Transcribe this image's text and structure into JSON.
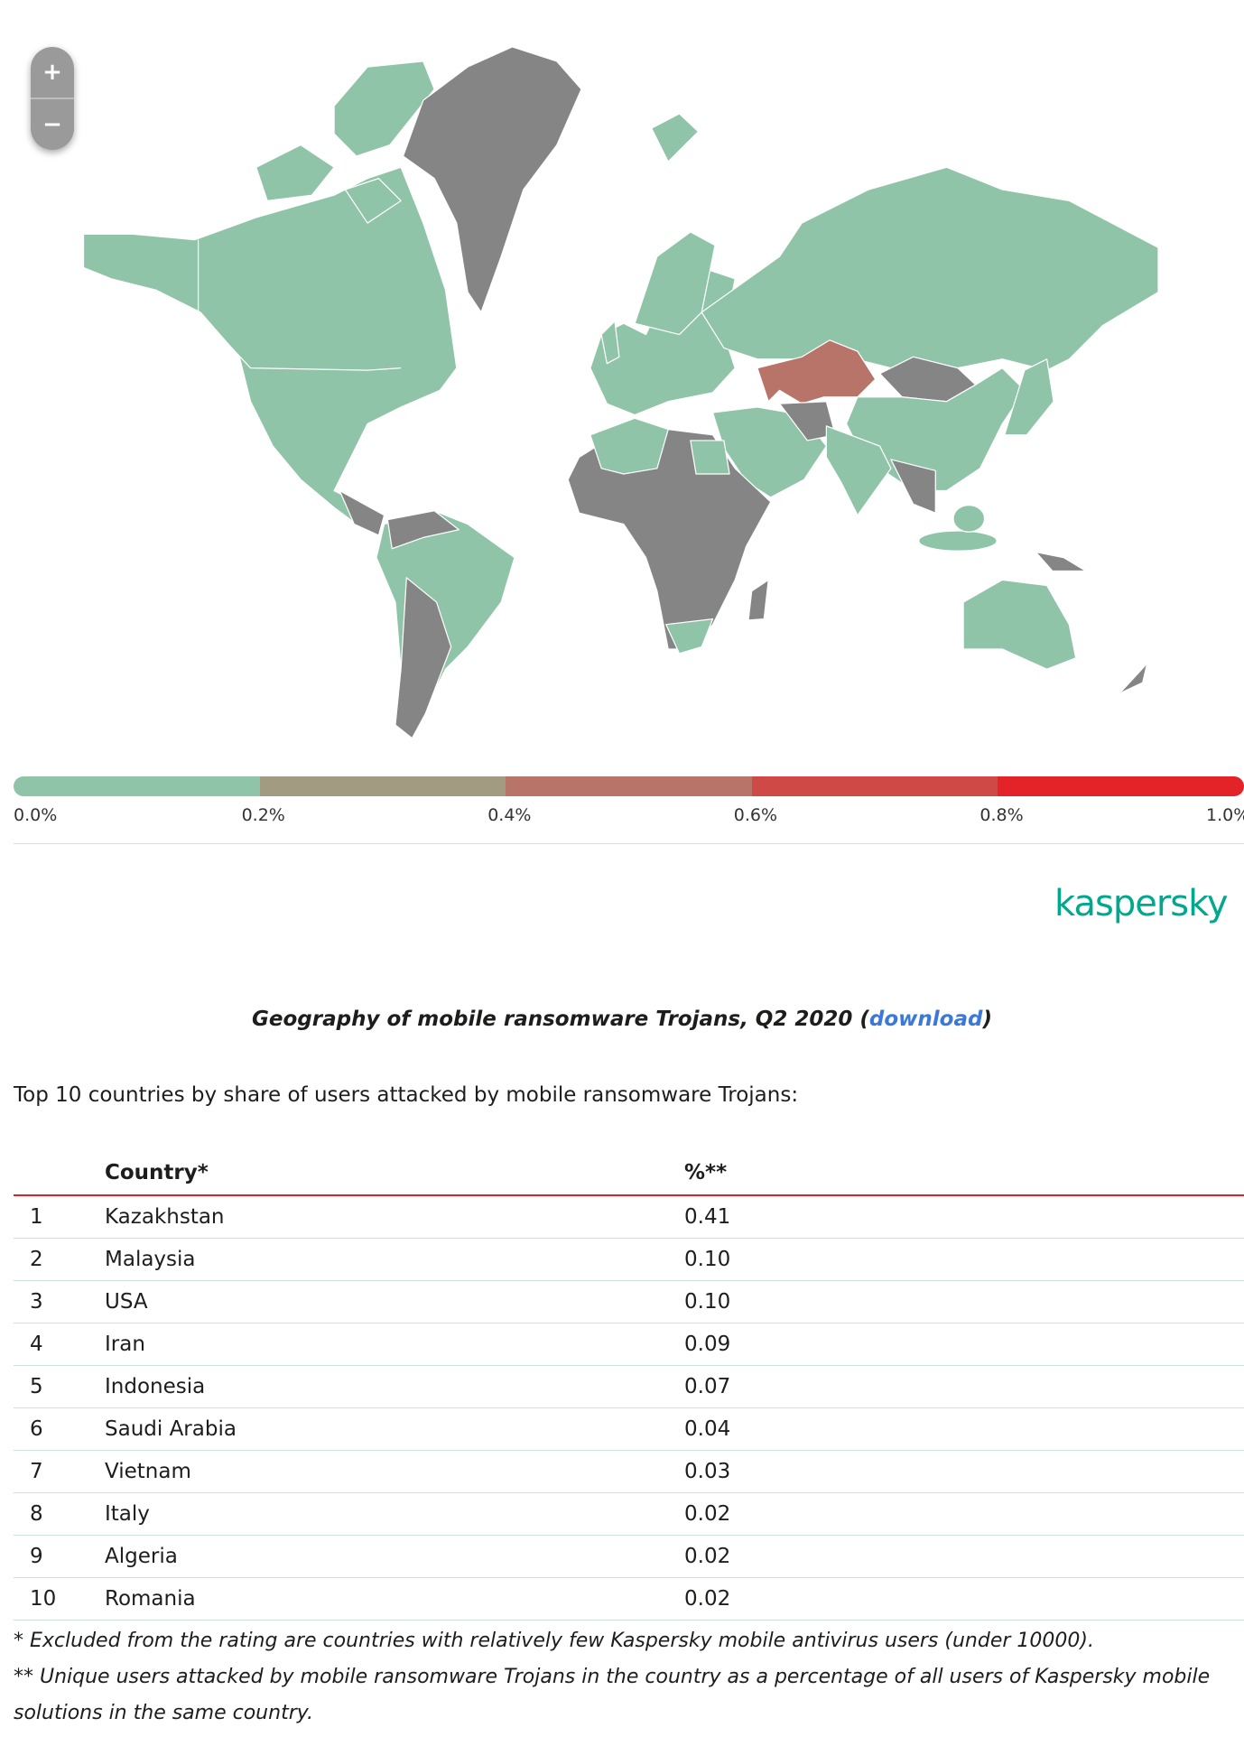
{
  "map": {
    "zoom_in_label": "+",
    "zoom_out_label": "−",
    "colors": {
      "low": "#8fc4a8",
      "no_data": "#858585",
      "kazakhstan": "#b87468",
      "border": "#ffffff"
    },
    "highlighted": [
      {
        "country": "Kazakhstan",
        "range": "0.4%–0.6%"
      }
    ]
  },
  "legend": {
    "colors": [
      "#8fc4a8",
      "#a39a82",
      "#b87468",
      "#cf4a47",
      "#e32328"
    ],
    "labels": [
      "0.0%",
      "0.2%",
      "0.4%",
      "0.6%",
      "0.8%",
      "1.0%"
    ]
  },
  "logo": "kaspersky",
  "caption": {
    "text": "Geography of mobile ransomware Trojans, Q2 2020 (",
    "link": "download",
    "close": ")"
  },
  "intro": "Top 10 countries by share of users attacked by mobile ransomware Trojans:",
  "table": {
    "headers": [
      "",
      "Country*",
      "%**"
    ],
    "rows": [
      {
        "rank": "1",
        "country": "Kazakhstan",
        "value": "0.41"
      },
      {
        "rank": "2",
        "country": "Malaysia",
        "value": "0.10"
      },
      {
        "rank": "3",
        "country": "USA",
        "value": "0.10"
      },
      {
        "rank": "4",
        "country": "Iran",
        "value": "0.09"
      },
      {
        "rank": "5",
        "country": "Indonesia",
        "value": "0.07"
      },
      {
        "rank": "6",
        "country": "Saudi Arabia",
        "value": "0.04"
      },
      {
        "rank": "7",
        "country": "Vietnam",
        "value": "0.03"
      },
      {
        "rank": "8",
        "country": "Italy",
        "value": "0.02"
      },
      {
        "rank": "9",
        "country": "Algeria",
        "value": "0.02"
      },
      {
        "rank": "10",
        "country": "Romania",
        "value": "0.02"
      }
    ]
  },
  "footnotes": [
    "* Excluded from the rating are countries with relatively few Kaspersky mobile antivirus users (under 10000).",
    "** Unique users attacked by mobile ransomware Trojans in the country as a percentage of all users of Kaspersky mobile solutions in the same country."
  ]
}
